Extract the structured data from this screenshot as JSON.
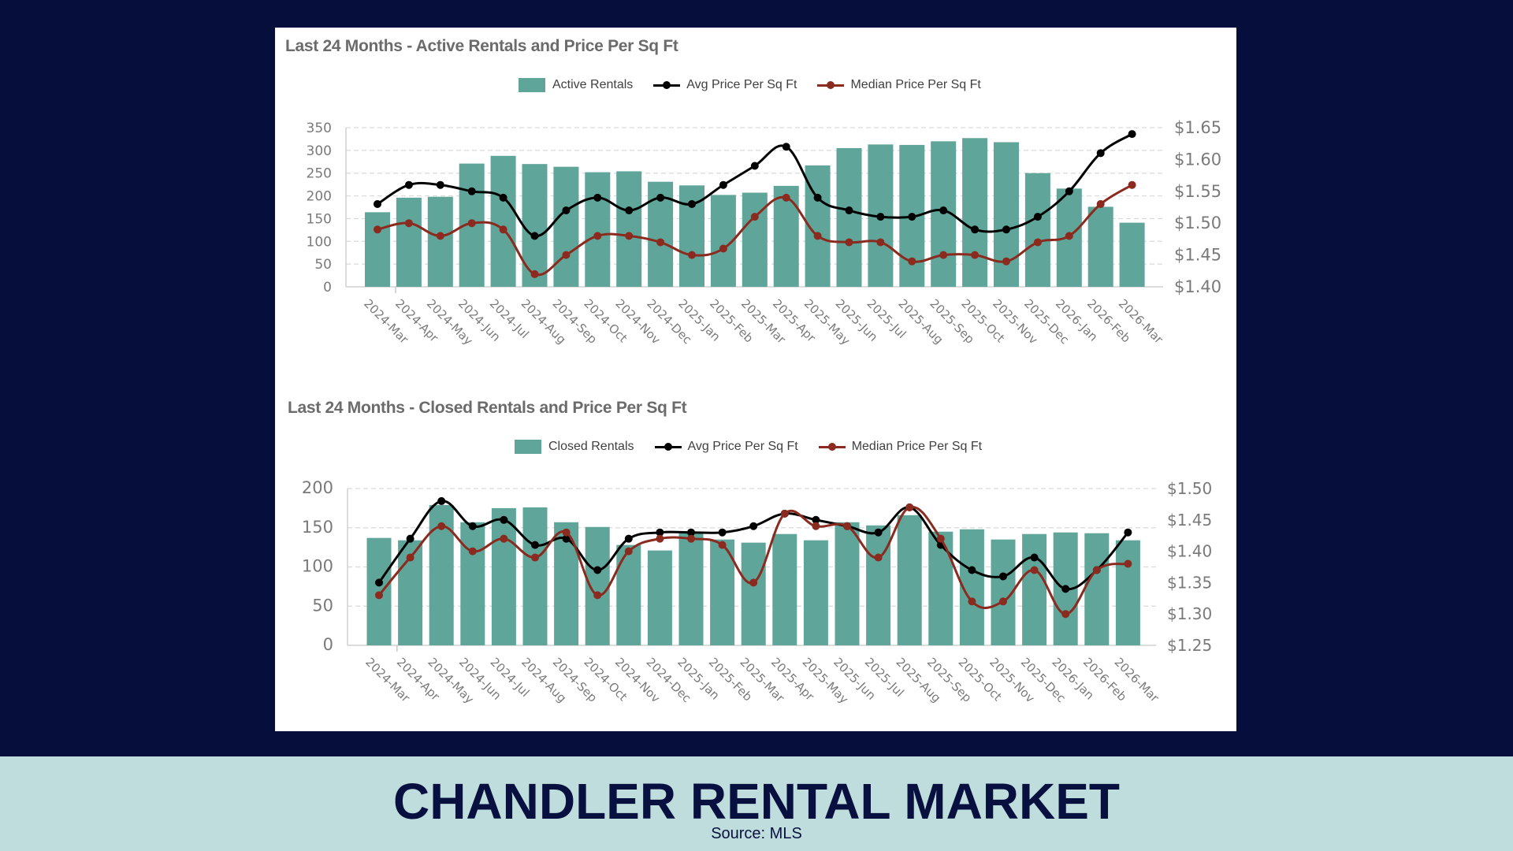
{
  "banner": {
    "title": "CHANDLER RENTAL MARKET",
    "source": "Source: MLS",
    "background": "#bfdddc",
    "text_color": "#081040"
  },
  "colors": {
    "page_background": "#060e3b",
    "bar": "#5fa59a",
    "avg_line": "#000000",
    "median_line": "#8b2a1e",
    "grid": "#d9d9d9",
    "axis_text": "#7a7a7a"
  },
  "chart_data": [
    {
      "type": "bar",
      "title": "Last 24 Months - Active Rentals and Price Per Sq Ft",
      "categories": [
        "2024-Mar",
        "2024-Apr",
        "2024-May",
        "2024-Jun",
        "2024-Jul",
        "2024-Aug",
        "2024-Sep",
        "2024-Oct",
        "2024-Nov",
        "2024-Dec",
        "2025-Jan",
        "2025-Feb",
        "2025-Mar",
        "2025-Apr",
        "2025-May",
        "2025-Jun",
        "2025-Jul",
        "2025-Aug",
        "2025-Sep",
        "2025-Oct",
        "2025-Nov",
        "2025-Dec",
        "2026-Jan",
        "2026-Feb",
        "2026-Mar"
      ],
      "series": [
        {
          "name": "Active Rentals",
          "type": "bar",
          "axis": "left",
          "values": [
            164,
            196,
            198,
            271,
            288,
            270,
            264,
            252,
            254,
            231,
            223,
            202,
            207,
            222,
            267,
            305,
            313,
            312,
            320,
            327,
            318,
            250,
            216,
            176,
            141
          ]
        },
        {
          "name": "Avg Price Per Sq Ft",
          "type": "line",
          "axis": "right",
          "values": [
            1.53,
            1.56,
            1.56,
            1.55,
            1.54,
            1.48,
            1.52,
            1.54,
            1.52,
            1.54,
            1.53,
            1.56,
            1.59,
            1.62,
            1.54,
            1.52,
            1.51,
            1.51,
            1.52,
            1.49,
            1.49,
            1.51,
            1.55,
            1.61,
            1.64
          ]
        },
        {
          "name": "Median Price Per Sq Ft",
          "type": "line",
          "axis": "right",
          "values": [
            1.49,
            1.5,
            1.48,
            1.5,
            1.49,
            1.42,
            1.45,
            1.48,
            1.48,
            1.47,
            1.45,
            1.46,
            1.51,
            1.54,
            1.48,
            1.47,
            1.47,
            1.44,
            1.45,
            1.45,
            1.44,
            1.47,
            1.48,
            1.53,
            1.56
          ]
        }
      ],
      "legend": [
        "Active Rentals",
        "Avg Price Per Sq Ft",
        "Median Price Per Sq Ft"
      ],
      "legend_position": "top",
      "y_left": {
        "ticks": [
          "0",
          "50",
          "100",
          "150",
          "200",
          "250",
          "300",
          "350"
        ],
        "lim": [
          0,
          350
        ]
      },
      "y_right": {
        "ticks": [
          "$1.40",
          "$1.45",
          "$1.50",
          "$1.55",
          "$1.60",
          "$1.65"
        ],
        "lim": [
          1.4,
          1.65
        ]
      },
      "grid": true,
      "xlabel": "",
      "ylabel": ""
    },
    {
      "type": "bar",
      "title": "Last 24 Months - Closed Rentals and Price Per Sq Ft",
      "categories": [
        "2024-Mar",
        "2024-Apr",
        "2024-May",
        "2024-Jun",
        "2024-Jul",
        "2024-Aug",
        "2024-Sep",
        "2024-Oct",
        "2024-Nov",
        "2024-Dec",
        "2025-Jan",
        "2025-Feb",
        "2025-Mar",
        "2025-Apr",
        "2025-May",
        "2025-Jun",
        "2025-Jul",
        "2025-Aug",
        "2025-Sep",
        "2025-Oct",
        "2025-Nov",
        "2025-Dec",
        "2026-Jan",
        "2026-Feb",
        "2026-Mar"
      ],
      "series": [
        {
          "name": "Closed Rentals",
          "type": "bar",
          "axis": "left",
          "values": [
            137,
            134,
            179,
            157,
            175,
            176,
            157,
            151,
            128,
            121,
            143,
            135,
            131,
            142,
            134,
            157,
            153,
            166,
            145,
            148,
            135,
            142,
            144,
            143,
            134
          ]
        },
        {
          "name": "Avg Price Per Sq Ft",
          "type": "line",
          "axis": "right",
          "values": [
            1.35,
            1.42,
            1.48,
            1.44,
            1.45,
            1.41,
            1.42,
            1.37,
            1.42,
            1.43,
            1.43,
            1.43,
            1.44,
            1.46,
            1.45,
            1.44,
            1.43,
            1.47,
            1.41,
            1.37,
            1.36,
            1.39,
            1.34,
            1.37,
            1.43
          ]
        },
        {
          "name": "Median Price Per Sq Ft",
          "type": "line",
          "axis": "right",
          "values": [
            1.33,
            1.39,
            1.44,
            1.4,
            1.42,
            1.39,
            1.43,
            1.33,
            1.4,
            1.42,
            1.42,
            1.41,
            1.35,
            1.46,
            1.44,
            1.44,
            1.39,
            1.47,
            1.42,
            1.32,
            1.32,
            1.37,
            1.3,
            1.37,
            1.38
          ]
        }
      ],
      "legend": [
        "Closed Rentals",
        "Avg Price Per Sq Ft",
        "Median Price Per Sq Ft"
      ],
      "legend_position": "top",
      "y_left": {
        "ticks": [
          "0",
          "50",
          "100",
          "150",
          "200"
        ],
        "lim": [
          0,
          200
        ]
      },
      "y_right": {
        "ticks": [
          "$1.25",
          "$1.30",
          "$1.35",
          "$1.40",
          "$1.45",
          "$1.50"
        ],
        "lim": [
          1.25,
          1.5
        ]
      },
      "grid": true,
      "xlabel": "",
      "ylabel": ""
    }
  ]
}
